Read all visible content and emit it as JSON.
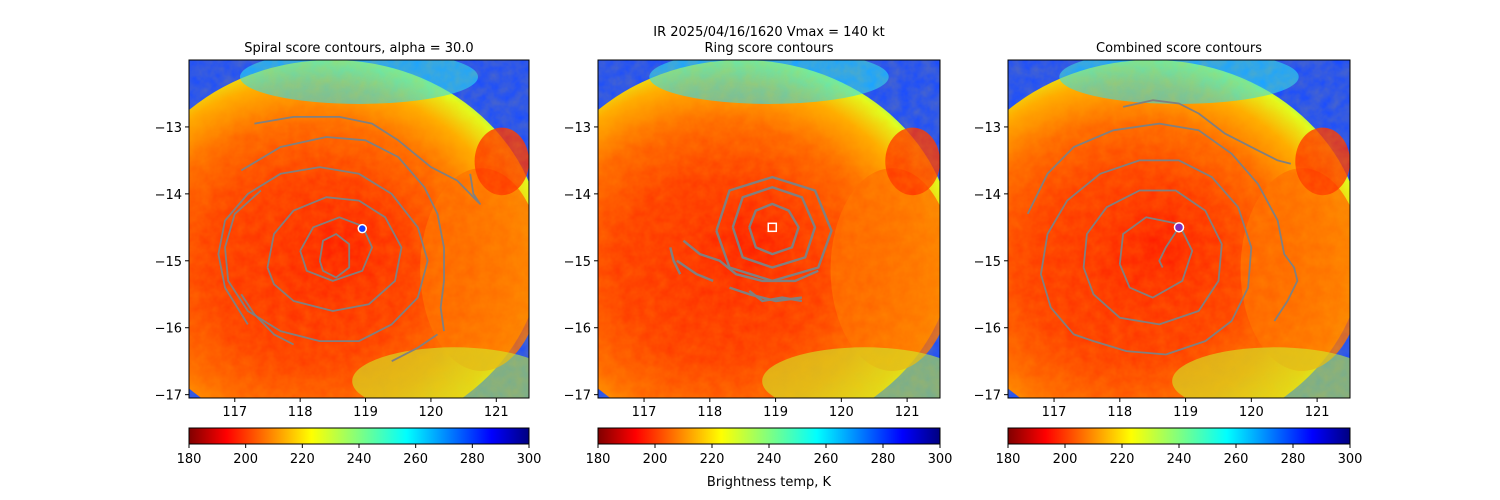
{
  "figure": {
    "suptitle_line1": "IR  2025/04/16/1620    Vmax = 140 kt",
    "colorbar_label": "Brightness temp, K"
  },
  "colors": {
    "contour": "#808080",
    "eye_marker_edge": "#ffffff",
    "combined_marker": "#7b2fbe"
  },
  "chart_data": [
    {
      "type": "heatmap",
      "title": "Spiral score contours, alpha = 30.0",
      "xlim": [
        116.3,
        121.5
      ],
      "ylim": [
        -17.05,
        -12.0
      ],
      "x_ticks": [
        117,
        118,
        119,
        120,
        121
      ],
      "y_ticks": [
        -13,
        -14,
        -15,
        -16,
        -17
      ],
      "center": [
        118.95,
        -14.52
      ],
      "marker": "circle",
      "contours": [
        [
          [
            117.3,
            -12.95
          ],
          [
            117.9,
            -12.85
          ],
          [
            118.6,
            -12.85
          ],
          [
            119.1,
            -12.95
          ],
          [
            119.5,
            -13.2
          ],
          [
            120.0,
            -13.6
          ],
          [
            120.4,
            -13.8
          ],
          [
            120.7,
            -14.1
          ],
          [
            120.75,
            -14.15
          ],
          [
            120.65,
            -14.0
          ],
          [
            120.6,
            -13.7
          ]
        ],
        [
          [
            117.1,
            -13.65
          ],
          [
            117.7,
            -13.3
          ],
          [
            118.4,
            -13.15
          ],
          [
            119.0,
            -13.2
          ],
          [
            119.5,
            -13.45
          ],
          [
            119.9,
            -13.9
          ],
          [
            120.1,
            -14.3
          ],
          [
            120.2,
            -14.8
          ],
          [
            120.2,
            -15.3
          ],
          [
            120.15,
            -15.7
          ],
          [
            120.2,
            -16.05
          ]
        ],
        [
          [
            117.2,
            -15.95
          ],
          [
            116.85,
            -15.4
          ],
          [
            116.75,
            -14.9
          ],
          [
            116.85,
            -14.4
          ],
          [
            117.2,
            -14.0
          ],
          [
            117.7,
            -13.7
          ],
          [
            118.3,
            -13.6
          ],
          [
            118.9,
            -13.7
          ],
          [
            119.4,
            -14.0
          ],
          [
            119.8,
            -14.5
          ],
          [
            119.95,
            -15.0
          ],
          [
            119.8,
            -15.55
          ],
          [
            119.4,
            -15.95
          ],
          [
            118.9,
            -16.2
          ],
          [
            118.3,
            -16.2
          ],
          [
            117.7,
            -16.05
          ],
          [
            117.2,
            -15.75
          ],
          [
            116.9,
            -15.3
          ],
          [
            116.85,
            -14.8
          ],
          [
            117.0,
            -14.3
          ],
          [
            117.4,
            -13.95
          ]
        ],
        [
          [
            117.5,
            -15.1
          ],
          [
            117.6,
            -14.6
          ],
          [
            117.9,
            -14.25
          ],
          [
            118.4,
            -14.05
          ],
          [
            118.9,
            -14.1
          ],
          [
            119.3,
            -14.35
          ],
          [
            119.55,
            -14.8
          ],
          [
            119.45,
            -15.3
          ],
          [
            119.05,
            -15.65
          ],
          [
            118.5,
            -15.75
          ],
          [
            117.9,
            -15.6
          ],
          [
            117.6,
            -15.35
          ],
          [
            117.5,
            -15.1
          ]
        ],
        [
          [
            118.0,
            -14.85
          ],
          [
            118.2,
            -14.5
          ],
          [
            118.6,
            -14.35
          ],
          [
            118.95,
            -14.48
          ],
          [
            119.1,
            -14.8
          ],
          [
            118.95,
            -15.15
          ],
          [
            118.5,
            -15.3
          ],
          [
            118.1,
            -15.15
          ],
          [
            118.0,
            -14.85
          ]
        ],
        [
          [
            118.3,
            -15.0
          ],
          [
            118.35,
            -14.7
          ],
          [
            118.55,
            -14.6
          ],
          [
            118.75,
            -14.75
          ],
          [
            118.75,
            -15.1
          ],
          [
            118.55,
            -15.25
          ],
          [
            118.35,
            -15.15
          ],
          [
            118.3,
            -15.0
          ]
        ],
        [
          [
            117.1,
            -15.5
          ],
          [
            117.3,
            -15.8
          ],
          [
            117.6,
            -16.1
          ],
          [
            117.9,
            -16.25
          ]
        ],
        [
          [
            119.4,
            -16.5
          ],
          [
            119.8,
            -16.3
          ],
          [
            120.1,
            -16.1
          ]
        ]
      ]
    },
    {
      "type": "heatmap",
      "title": "Ring score contours",
      "xlim": [
        116.3,
        121.5
      ],
      "ylim": [
        -17.05,
        -12.0
      ],
      "x_ticks": [
        117,
        118,
        119,
        120,
        121
      ],
      "y_ticks": [
        -13,
        -14,
        -15,
        -16,
        -17
      ],
      "center": [
        118.95,
        -14.5
      ],
      "marker": "square",
      "contours": [
        [
          [
            118.6,
            -14.5
          ],
          [
            118.7,
            -14.25
          ],
          [
            118.95,
            -14.15
          ],
          [
            119.2,
            -14.25
          ],
          [
            119.35,
            -14.5
          ],
          [
            119.25,
            -14.8
          ],
          [
            118.95,
            -14.9
          ],
          [
            118.7,
            -14.8
          ],
          [
            118.6,
            -14.5
          ]
        ],
        [
          [
            118.35,
            -14.5
          ],
          [
            118.5,
            -14.05
          ],
          [
            118.95,
            -13.9
          ],
          [
            119.4,
            -14.05
          ],
          [
            119.6,
            -14.5
          ],
          [
            119.45,
            -14.95
          ],
          [
            118.95,
            -15.1
          ],
          [
            118.5,
            -14.95
          ],
          [
            118.35,
            -14.5
          ]
        ],
        [
          [
            118.1,
            -14.55
          ],
          [
            118.3,
            -13.95
          ],
          [
            118.95,
            -13.75
          ],
          [
            119.6,
            -13.95
          ],
          [
            119.85,
            -14.55
          ],
          [
            119.65,
            -15.1
          ],
          [
            118.95,
            -15.3
          ],
          [
            118.3,
            -15.1
          ],
          [
            118.1,
            -14.55
          ]
        ],
        [
          [
            117.6,
            -14.7
          ],
          [
            117.85,
            -14.9
          ],
          [
            118.15,
            -15.0
          ],
          [
            118.4,
            -15.2
          ],
          [
            118.8,
            -15.3
          ],
          [
            119.3,
            -15.3
          ],
          [
            119.65,
            -15.15
          ]
        ],
        [
          [
            118.3,
            -15.4
          ],
          [
            118.6,
            -15.5
          ],
          [
            119.0,
            -15.6
          ],
          [
            119.4,
            -15.55
          ]
        ],
        [
          [
            117.5,
            -15.0
          ],
          [
            117.8,
            -15.2
          ],
          [
            118.05,
            -15.3
          ]
        ],
        [
          [
            118.6,
            -15.45
          ],
          [
            118.8,
            -15.6
          ],
          [
            119.1,
            -15.55
          ],
          [
            119.4,
            -15.6
          ]
        ],
        [
          [
            117.4,
            -14.8
          ],
          [
            117.45,
            -15.0
          ],
          [
            117.55,
            -15.2
          ]
        ]
      ]
    },
    {
      "type": "heatmap",
      "title": "Combined score contours",
      "xlim": [
        116.3,
        121.5
      ],
      "ylim": [
        -17.05,
        -12.0
      ],
      "x_ticks": [
        117,
        118,
        119,
        120,
        121
      ],
      "y_ticks": [
        -13,
        -14,
        -15,
        -16,
        -17
      ],
      "center": [
        118.9,
        -14.5
      ],
      "marker": "circle-filled",
      "contours": [
        [
          [
            118.05,
            -12.7
          ],
          [
            118.5,
            -12.6
          ],
          [
            118.9,
            -12.65
          ],
          [
            119.2,
            -12.8
          ],
          [
            119.6,
            -13.1
          ],
          [
            120.1,
            -13.35
          ],
          [
            120.4,
            -13.5
          ],
          [
            120.6,
            -13.55
          ]
        ],
        [
          [
            116.6,
            -14.3
          ],
          [
            116.9,
            -13.7
          ],
          [
            117.3,
            -13.3
          ],
          [
            117.9,
            -13.05
          ],
          [
            118.6,
            -12.95
          ],
          [
            119.2,
            -13.05
          ],
          [
            119.7,
            -13.4
          ],
          [
            120.1,
            -13.85
          ],
          [
            120.4,
            -14.4
          ],
          [
            120.5,
            -14.9
          ],
          [
            120.65,
            -15.1
          ],
          [
            120.7,
            -15.3
          ],
          [
            120.55,
            -15.6
          ],
          [
            120.35,
            -15.9
          ]
        ],
        [
          [
            117.3,
            -16.1
          ],
          [
            116.95,
            -15.7
          ],
          [
            116.8,
            -15.2
          ],
          [
            116.9,
            -14.6
          ],
          [
            117.2,
            -14.1
          ],
          [
            117.7,
            -13.7
          ],
          [
            118.3,
            -13.5
          ],
          [
            118.9,
            -13.5
          ],
          [
            119.4,
            -13.75
          ],
          [
            119.8,
            -14.2
          ],
          [
            120.0,
            -14.8
          ],
          [
            119.95,
            -15.4
          ],
          [
            119.7,
            -15.9
          ],
          [
            119.3,
            -16.2
          ],
          [
            118.7,
            -16.4
          ],
          [
            118.1,
            -16.35
          ],
          [
            117.6,
            -16.2
          ],
          [
            117.3,
            -16.1
          ]
        ],
        [
          [
            117.45,
            -15.1
          ],
          [
            117.5,
            -14.6
          ],
          [
            117.8,
            -14.2
          ],
          [
            118.3,
            -13.95
          ],
          [
            118.85,
            -13.95
          ],
          [
            119.3,
            -14.25
          ],
          [
            119.55,
            -14.75
          ],
          [
            119.5,
            -15.3
          ],
          [
            119.2,
            -15.75
          ],
          [
            118.6,
            -15.95
          ],
          [
            118.0,
            -15.85
          ],
          [
            117.6,
            -15.5
          ],
          [
            117.45,
            -15.1
          ]
        ],
        [
          [
            118.0,
            -15.05
          ],
          [
            118.05,
            -14.6
          ],
          [
            118.4,
            -14.35
          ],
          [
            118.9,
            -14.45
          ],
          [
            119.1,
            -14.85
          ],
          [
            118.95,
            -15.3
          ],
          [
            118.5,
            -15.55
          ],
          [
            118.15,
            -15.4
          ],
          [
            118.0,
            -15.05
          ]
        ],
        [
          [
            118.9,
            -14.5
          ],
          [
            118.7,
            -14.8
          ],
          [
            118.6,
            -15.0
          ],
          [
            118.65,
            -15.1
          ]
        ]
      ]
    }
  ],
  "colorbars": [
    {
      "vmin": 180,
      "vmax": 300,
      "ticks": [
        180,
        200,
        220,
        240,
        260,
        280,
        300
      ],
      "colormap": "jet_r"
    },
    {
      "vmin": 180,
      "vmax": 300,
      "ticks": [
        180,
        200,
        220,
        240,
        260,
        280,
        300
      ],
      "colormap": "jet_r"
    },
    {
      "vmin": 180,
      "vmax": 300,
      "ticks": [
        180,
        200,
        220,
        240,
        260,
        280,
        300
      ],
      "colormap": "jet_r"
    }
  ]
}
